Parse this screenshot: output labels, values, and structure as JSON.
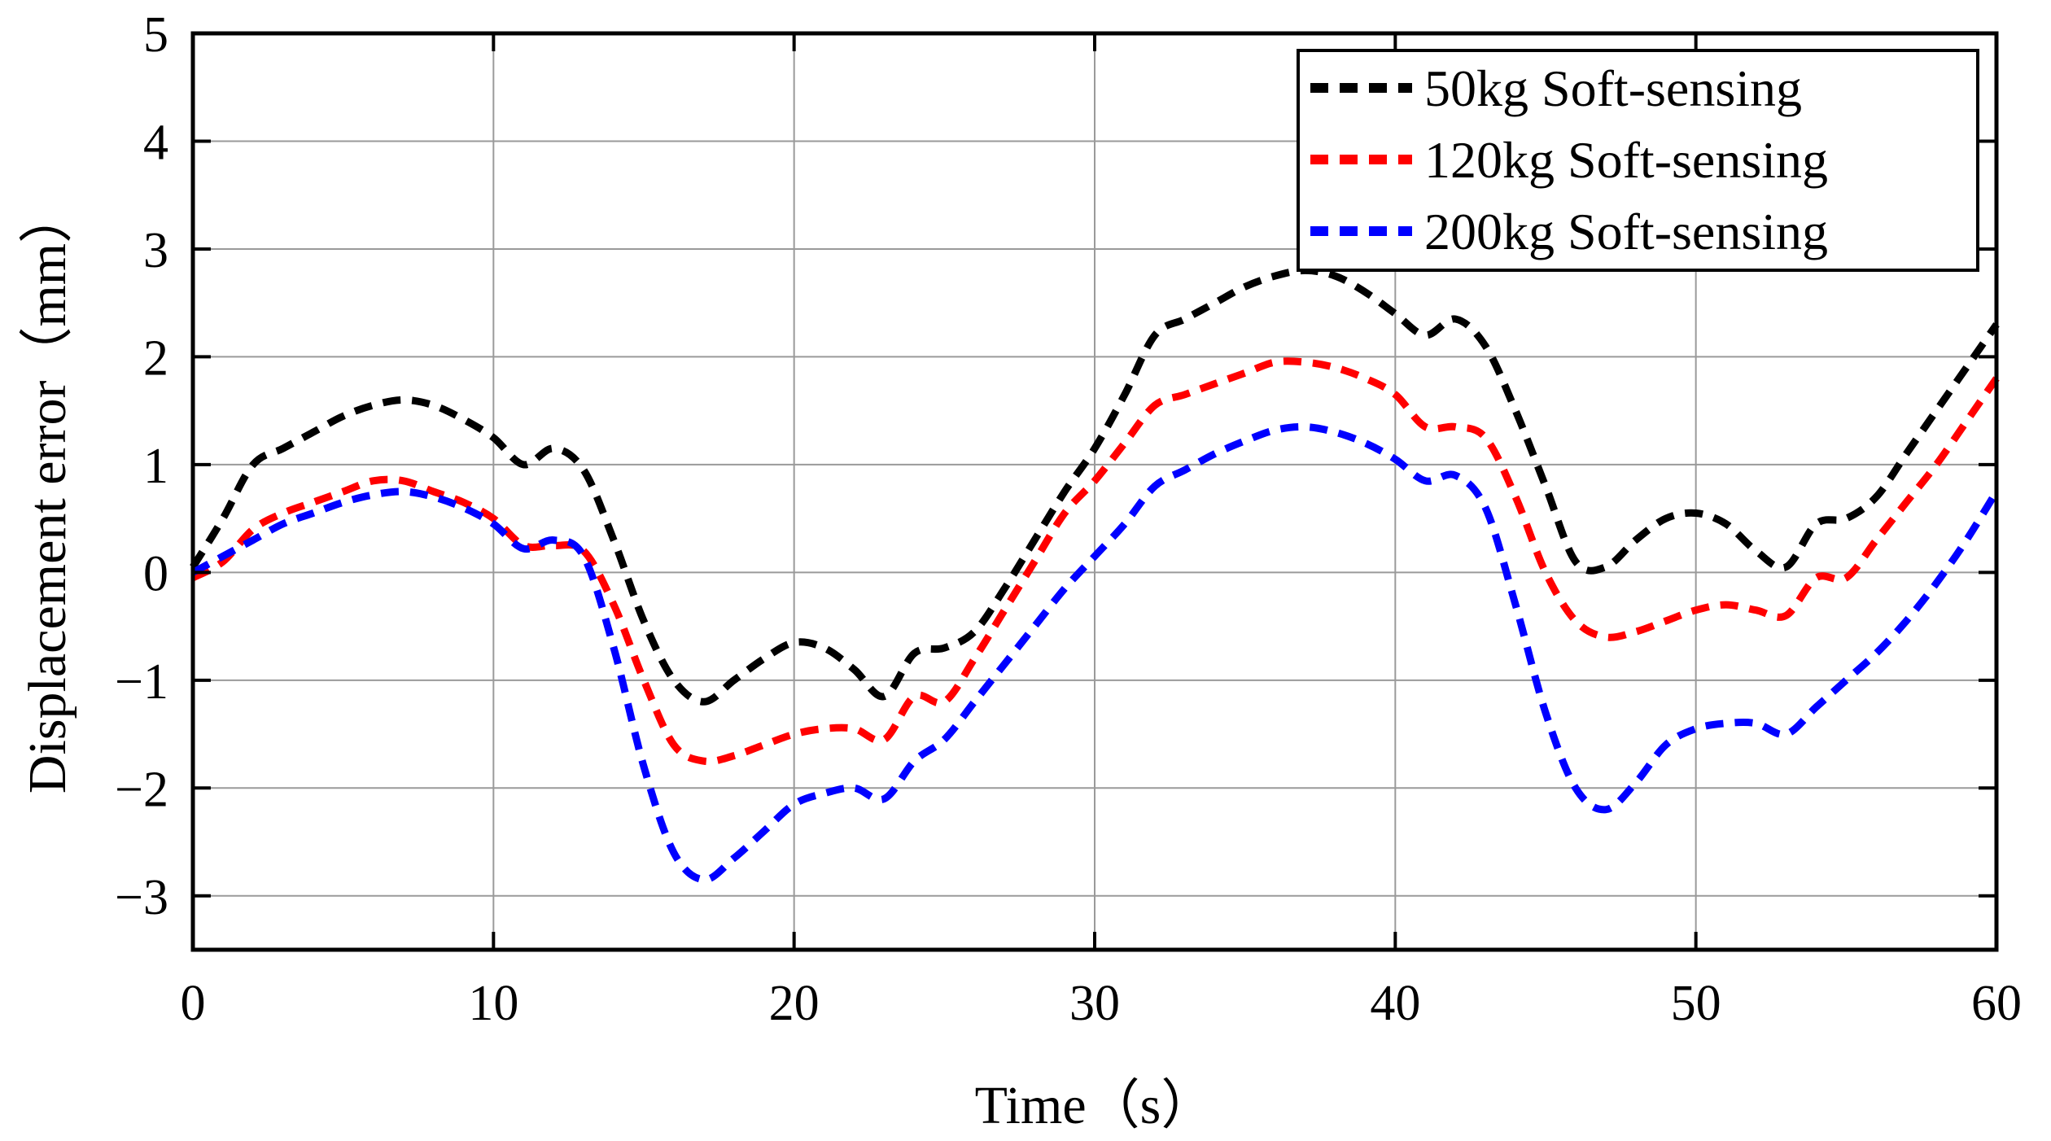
{
  "chart_data": {
    "type": "line",
    "title": "",
    "xlabel": "Time（s）",
    "ylabel": "Displacement error（mm）",
    "xlim": [
      0,
      60
    ],
    "ylim": [
      -3.5,
      5
    ],
    "xticks": [
      0,
      10,
      20,
      30,
      40,
      50,
      60
    ],
    "yticks": [
      5,
      4,
      3,
      2,
      1,
      0,
      -1,
      -2,
      -3
    ],
    "ytick_labels": [
      "5",
      "4",
      "3",
      "2",
      "1",
      "0",
      "−1",
      "−2",
      "−3"
    ],
    "grid": true,
    "legend_position": "top-right",
    "series": [
      {
        "name": "50kg Soft-sensing",
        "color": "#000000",
        "x": [
          0,
          1,
          2,
          3,
          4,
          5,
          6,
          7,
          8,
          9,
          10,
          11,
          12,
          13,
          14,
          15,
          16,
          17,
          18,
          19,
          20,
          21,
          22,
          23,
          24,
          25,
          26,
          27,
          28,
          29,
          30,
          31,
          32,
          33,
          34,
          35,
          36,
          37,
          38,
          39,
          40,
          41,
          42,
          43,
          44,
          45,
          46,
          47,
          48,
          49,
          50,
          51,
          52,
          53,
          54,
          55,
          56,
          57,
          58,
          59,
          60
        ],
        "values": [
          0.05,
          0.5,
          1.0,
          1.15,
          1.3,
          1.45,
          1.55,
          1.6,
          1.55,
          1.42,
          1.25,
          1.0,
          1.15,
          0.95,
          0.3,
          -0.45,
          -1.0,
          -1.2,
          -1.0,
          -0.8,
          -0.65,
          -0.7,
          -0.9,
          -1.15,
          -0.75,
          -0.7,
          -0.55,
          -0.15,
          0.3,
          0.75,
          1.15,
          1.65,
          2.2,
          2.35,
          2.5,
          2.65,
          2.75,
          2.8,
          2.75,
          2.6,
          2.4,
          2.2,
          2.35,
          2.1,
          1.5,
          0.8,
          0.1,
          0.05,
          0.3,
          0.5,
          0.55,
          0.45,
          0.2,
          0.05,
          0.45,
          0.5,
          0.7,
          1.1,
          1.5,
          1.9,
          2.3
        ]
      },
      {
        "name": "120kg Soft-sensing",
        "color": "#ff0000",
        "x": [
          0,
          1,
          2,
          3,
          4,
          5,
          6,
          7,
          8,
          9,
          10,
          11,
          12,
          13,
          14,
          15,
          16,
          17,
          18,
          19,
          20,
          21,
          22,
          23,
          24,
          25,
          26,
          27,
          28,
          29,
          30,
          31,
          32,
          33,
          34,
          35,
          36,
          37,
          38,
          39,
          40,
          41,
          42,
          43,
          44,
          45,
          46,
          47,
          48,
          49,
          50,
          51,
          52,
          53,
          54,
          55,
          56,
          57,
          58,
          59,
          60
        ],
        "values": [
          -0.05,
          0.1,
          0.4,
          0.55,
          0.65,
          0.75,
          0.85,
          0.85,
          0.75,
          0.65,
          0.5,
          0.25,
          0.25,
          0.2,
          -0.3,
          -1.0,
          -1.6,
          -1.75,
          -1.7,
          -1.6,
          -1.5,
          -1.45,
          -1.45,
          -1.55,
          -1.15,
          -1.2,
          -0.8,
          -0.35,
          0.1,
          0.55,
          0.85,
          1.2,
          1.55,
          1.65,
          1.75,
          1.85,
          1.95,
          1.95,
          1.9,
          1.8,
          1.65,
          1.35,
          1.35,
          1.25,
          0.7,
          0.0,
          -0.45,
          -0.6,
          -0.55,
          -0.45,
          -0.35,
          -0.3,
          -0.35,
          -0.4,
          -0.05,
          -0.05,
          0.3,
          0.65,
          1.0,
          1.4,
          1.8
        ]
      },
      {
        "name": "200kg Soft-sensing",
        "color": "#0000ff",
        "x": [
          0,
          1,
          2,
          3,
          4,
          5,
          6,
          7,
          8,
          9,
          10,
          11,
          12,
          13,
          14,
          15,
          16,
          17,
          18,
          19,
          20,
          21,
          22,
          23,
          24,
          25,
          26,
          27,
          28,
          29,
          30,
          31,
          32,
          33,
          34,
          35,
          36,
          37,
          38,
          39,
          40,
          41,
          42,
          43,
          44,
          45,
          46,
          47,
          48,
          49,
          50,
          51,
          52,
          53,
          54,
          55,
          56,
          57,
          58,
          59,
          60
        ],
        "values": [
          0.0,
          0.15,
          0.3,
          0.45,
          0.55,
          0.65,
          0.72,
          0.75,
          0.7,
          0.6,
          0.45,
          0.22,
          0.3,
          0.15,
          -0.7,
          -1.8,
          -2.6,
          -2.85,
          -2.65,
          -2.4,
          -2.15,
          -2.05,
          -2.0,
          -2.1,
          -1.75,
          -1.55,
          -1.2,
          -0.85,
          -0.5,
          -0.15,
          0.15,
          0.45,
          0.8,
          0.95,
          1.1,
          1.22,
          1.32,
          1.35,
          1.3,
          1.2,
          1.05,
          0.85,
          0.9,
          0.6,
          -0.3,
          -1.3,
          -2.0,
          -2.2,
          -1.95,
          -1.6,
          -1.45,
          -1.4,
          -1.4,
          -1.5,
          -1.25,
          -1.0,
          -0.75,
          -0.45,
          -0.1,
          0.3,
          0.75
        ]
      }
    ]
  }
}
